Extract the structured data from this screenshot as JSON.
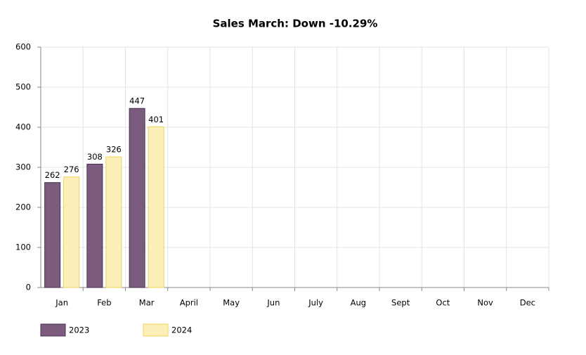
{
  "chart_data": {
    "type": "bar",
    "title": "Sales March: Down -10.29%",
    "categories": [
      "Jan",
      "Feb",
      "Mar",
      "April",
      "May",
      "Jun",
      "July",
      "Aug",
      "Sept",
      "Oct",
      "Nov",
      "Dec"
    ],
    "series": [
      {
        "name": "2023",
        "color": "#7b5c7e",
        "values": [
          262,
          308,
          447,
          null,
          null,
          null,
          null,
          null,
          null,
          null,
          null,
          null
        ]
      },
      {
        "name": "2024",
        "color": "#fcefb9",
        "values": [
          276,
          326,
          401,
          null,
          null,
          null,
          null,
          null,
          null,
          null,
          null,
          null
        ]
      }
    ],
    "ylim": [
      0,
      600
    ],
    "yticks": [
      0,
      100,
      200,
      300,
      400,
      500,
      600
    ],
    "grid": true,
    "legend": "bottom"
  }
}
